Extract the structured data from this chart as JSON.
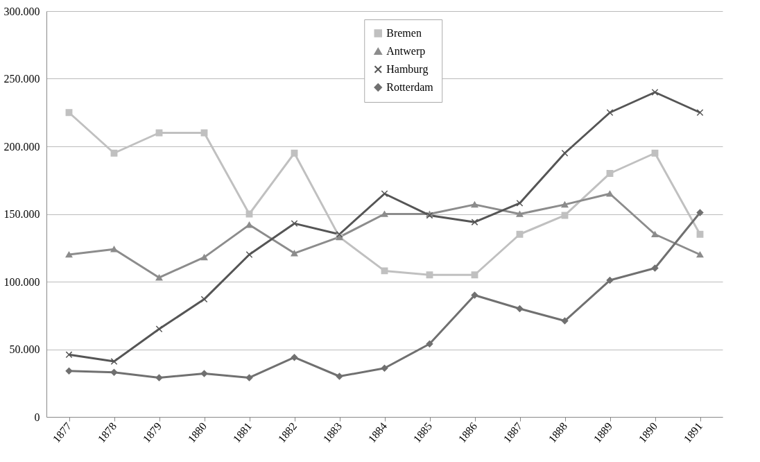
{
  "chart_data": {
    "type": "line",
    "categories": [
      "1877",
      "1878",
      "1879",
      "1880",
      "1881",
      "1882",
      "1883",
      "1884",
      "1885",
      "1886",
      "1887",
      "1888",
      "1889",
      "1890",
      "1891"
    ],
    "series": [
      {
        "name": "Bremen",
        "color": "#c0c0c0",
        "marker": "square",
        "values": [
          225000,
          195000,
          210000,
          210000,
          150000,
          195000,
          133000,
          108000,
          105000,
          105000,
          135000,
          149000,
          180000,
          195000,
          135000
        ]
      },
      {
        "name": "Antwerp",
        "color": "#8c8c8c",
        "marker": "triangle",
        "values": [
          120000,
          124000,
          103000,
          118000,
          142000,
          121000,
          133000,
          150000,
          150000,
          157000,
          150000,
          157000,
          165000,
          135000,
          120000
        ]
      },
      {
        "name": "Hamburg",
        "color": "#555555",
        "marker": "cross",
        "values": [
          46000,
          41000,
          65000,
          87000,
          120000,
          143000,
          135000,
          165000,
          149000,
          144000,
          158000,
          195000,
          225000,
          240000,
          225000
        ]
      },
      {
        "name": "Rotterdam",
        "color": "#707070",
        "marker": "diamond",
        "values": [
          34000,
          33000,
          29000,
          32000,
          29000,
          44000,
          30000,
          36000,
          54000,
          90000,
          80000,
          71000,
          101000,
          110000,
          151000
        ]
      }
    ],
    "ylim": [
      0,
      300000
    ],
    "yticks": [
      {
        "value": 0,
        "label": "0"
      },
      {
        "value": 50000,
        "label": "50.000"
      },
      {
        "value": 100000,
        "label": "100.000"
      },
      {
        "value": 150000,
        "label": "150.000"
      },
      {
        "value": 200000,
        "label": "200.000"
      },
      {
        "value": 250000,
        "label": "250.000"
      },
      {
        "value": 300000,
        "label": "300.000"
      }
    ],
    "grid": "y",
    "legend": "top",
    "line_style": "solid"
  }
}
